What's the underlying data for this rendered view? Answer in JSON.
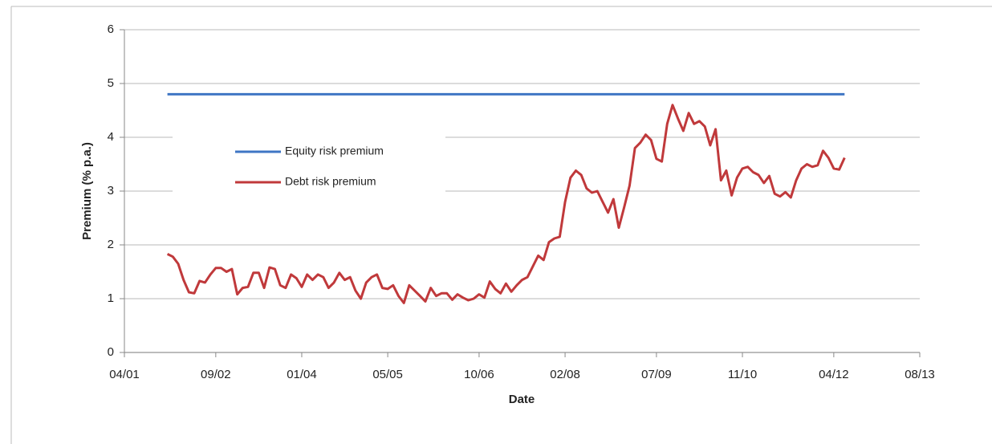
{
  "chart_data": {
    "type": "line",
    "y_label": "Premium (% p.a.)",
    "x_label": "Date",
    "xlim": [
      "04/01",
      "08/13"
    ],
    "xticks": [
      "04/01",
      "09/02",
      "01/04",
      "05/05",
      "10/06",
      "02/08",
      "07/09",
      "11/10",
      "04/12",
      "08/13"
    ],
    "ylim": [
      0,
      6
    ],
    "yticks": [
      0,
      1,
      2,
      3,
      4,
      5,
      6
    ],
    "grid": true,
    "legend": "left",
    "series": [
      {
        "name": "Equity risk premium",
        "color": "#3f76c4",
        "x": [
          "12/01",
          "06/12"
        ],
        "values": [
          4.8,
          4.8
        ]
      },
      {
        "name": "Debt risk premium",
        "color": "#c0393b",
        "x": [
          "12/01",
          "01/02",
          "02/02",
          "03/02",
          "04/02",
          "05/02",
          "06/02",
          "07/02",
          "08/02",
          "09/02",
          "10/02",
          "11/02",
          "12/02",
          "01/03",
          "02/03",
          "03/03",
          "04/03",
          "05/03",
          "06/03",
          "07/03",
          "08/03",
          "09/03",
          "10/03",
          "11/03",
          "12/03",
          "01/04",
          "02/04",
          "03/04",
          "04/04",
          "05/04",
          "06/04",
          "07/04",
          "08/04",
          "09/04",
          "10/04",
          "11/04",
          "12/04",
          "01/05",
          "02/05",
          "03/05",
          "04/05",
          "05/05",
          "06/05",
          "07/05",
          "08/05",
          "09/05",
          "10/05",
          "11/05",
          "12/05",
          "01/06",
          "02/06",
          "03/06",
          "04/06",
          "05/06",
          "06/06",
          "07/06",
          "08/06",
          "09/06",
          "10/06",
          "11/06",
          "12/06",
          "01/07",
          "02/07",
          "03/07",
          "04/07",
          "05/07",
          "06/07",
          "07/07",
          "08/07",
          "09/07",
          "10/07",
          "11/07",
          "12/07",
          "01/08",
          "02/08",
          "03/08",
          "04/08",
          "05/08",
          "06/08",
          "07/08",
          "08/08",
          "09/08",
          "10/08",
          "11/08",
          "12/08",
          "01/09",
          "02/09",
          "03/09",
          "04/09",
          "05/09",
          "06/09",
          "07/09",
          "08/09",
          "09/09",
          "10/09",
          "11/09",
          "12/09",
          "01/10",
          "02/10",
          "03/10",
          "04/10",
          "05/10",
          "06/10",
          "07/10",
          "08/10",
          "09/10",
          "10/10",
          "11/10",
          "12/10",
          "01/11",
          "02/11",
          "03/11",
          "04/11",
          "05/11",
          "06/11",
          "07/11",
          "08/11",
          "09/11",
          "10/11",
          "11/11",
          "12/11",
          "01/12",
          "02/12",
          "03/12",
          "04/12",
          "05/12",
          "06/12"
        ],
        "values": [
          1.83,
          1.78,
          1.65,
          1.35,
          1.12,
          1.1,
          1.33,
          1.3,
          1.45,
          1.57,
          1.57,
          1.5,
          1.55,
          1.08,
          1.2,
          1.22,
          1.48,
          1.48,
          1.2,
          1.58,
          1.55,
          1.25,
          1.2,
          1.45,
          1.38,
          1.22,
          1.45,
          1.35,
          1.45,
          1.4,
          1.2,
          1.3,
          1.48,
          1.35,
          1.4,
          1.15,
          1.0,
          1.3,
          1.4,
          1.45,
          1.2,
          1.18,
          1.25,
          1.05,
          0.92,
          1.25,
          1.15,
          1.05,
          0.95,
          1.2,
          1.05,
          1.1,
          1.1,
          0.98,
          1.08,
          1.02,
          0.97,
          1.0,
          1.08,
          1.02,
          1.32,
          1.18,
          1.1,
          1.28,
          1.13,
          1.25,
          1.35,
          1.4,
          1.6,
          1.8,
          1.72,
          2.05,
          2.12,
          2.15,
          2.8,
          3.25,
          3.38,
          3.3,
          3.05,
          2.97,
          3.0,
          2.8,
          2.6,
          2.85,
          2.32,
          2.7,
          3.1,
          3.8,
          3.9,
          4.05,
          3.95,
          3.6,
          3.55,
          4.25,
          4.6,
          4.35,
          4.12,
          4.45,
          4.25,
          4.3,
          4.2,
          3.85,
          4.15,
          3.2,
          3.38,
          2.92,
          3.25,
          3.42,
          3.45,
          3.35,
          3.3,
          3.15,
          3.28,
          2.95,
          2.9,
          2.98,
          2.88,
          3.2,
          3.42,
          3.5,
          3.45,
          3.48,
          3.75,
          3.62,
          3.42,
          3.4,
          3.62
        ]
      }
    ]
  }
}
